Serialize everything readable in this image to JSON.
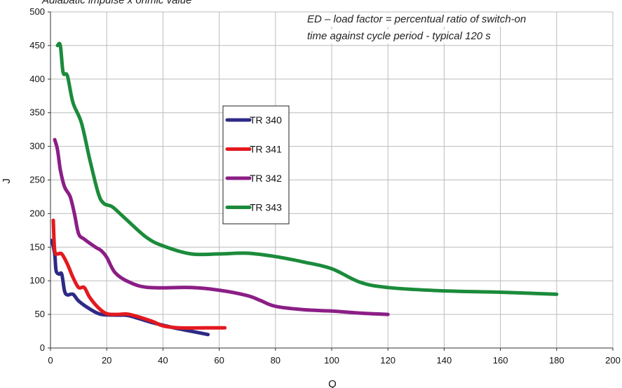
{
  "notes": {
    "top_left": "Adiabatic impulse x ohmic value",
    "top_right_line1": "ED – load factor = percentual ratio of switch-on",
    "top_right_line2": "time against cycle period - typical 120 s"
  },
  "chart_data": {
    "type": "line",
    "title": "",
    "xlabel": "Q",
    "ylabel": "J",
    "xlim": [
      0,
      200
    ],
    "ylim": [
      0,
      500
    ],
    "xticks": [
      "0",
      "20",
      "40",
      "60",
      "80",
      "100",
      "120",
      "140",
      "160",
      "180",
      "200"
    ],
    "yticks": [
      "0",
      "50",
      "100",
      "150",
      "200",
      "250",
      "300",
      "350",
      "400",
      "450",
      "500"
    ],
    "grid": true,
    "legend_position": "center",
    "series": [
      {
        "name": "TR 340",
        "color": "#2e2a86",
        "points": [
          [
            0.5,
            160
          ],
          [
            1.5,
            140
          ],
          [
            2,
            115
          ],
          [
            3,
            110
          ],
          [
            4,
            110
          ],
          [
            5,
            85
          ],
          [
            6,
            79
          ],
          [
            8,
            80
          ],
          [
            10,
            70
          ],
          [
            14,
            58
          ],
          [
            18,
            50
          ],
          [
            24,
            49
          ],
          [
            28,
            48
          ],
          [
            36,
            38
          ],
          [
            44,
            30
          ],
          [
            50,
            25
          ],
          [
            56,
            20
          ]
        ]
      },
      {
        "name": "TR 341",
        "color": "#e3191f",
        "points": [
          [
            1,
            190
          ],
          [
            1.5,
            145
          ],
          [
            2.5,
            140
          ],
          [
            4,
            140
          ],
          [
            6,
            125
          ],
          [
            8,
            105
          ],
          [
            10,
            90
          ],
          [
            12,
            90
          ],
          [
            14,
            75
          ],
          [
            17,
            60
          ],
          [
            20,
            51
          ],
          [
            24,
            50
          ],
          [
            28,
            50
          ],
          [
            36,
            40
          ],
          [
            40,
            33
          ],
          [
            46,
            30
          ],
          [
            55,
            30
          ],
          [
            62,
            30
          ]
        ]
      },
      {
        "name": "TR 342",
        "color": "#8b1e86",
        "points": [
          [
            1.5,
            310
          ],
          [
            2.5,
            295
          ],
          [
            3.5,
            265
          ],
          [
            5,
            240
          ],
          [
            7,
            225
          ],
          [
            8.5,
            200
          ],
          [
            10,
            170
          ],
          [
            12,
            162
          ],
          [
            16,
            150
          ],
          [
            18,
            145
          ],
          [
            20,
            135
          ],
          [
            23,
            112
          ],
          [
            28,
            98
          ],
          [
            35,
            90
          ],
          [
            50,
            90
          ],
          [
            60,
            86
          ],
          [
            70,
            78
          ],
          [
            75,
            70
          ],
          [
            80,
            62
          ],
          [
            90,
            57
          ],
          [
            100,
            55
          ],
          [
            110,
            52
          ],
          [
            120,
            50
          ]
        ]
      },
      {
        "name": "TR 343",
        "color": "#1b8b3b",
        "points": [
          [
            2.5,
            450
          ],
          [
            3.5,
            450
          ],
          [
            4.5,
            410
          ],
          [
            6,
            405
          ],
          [
            8,
            365
          ],
          [
            11,
            335
          ],
          [
            14,
            280
          ],
          [
            17,
            230
          ],
          [
            19,
            215
          ],
          [
            22,
            210
          ],
          [
            26,
            195
          ],
          [
            34,
            165
          ],
          [
            40,
            152
          ],
          [
            50,
            140
          ],
          [
            60,
            140
          ],
          [
            70,
            141
          ],
          [
            80,
            136
          ],
          [
            90,
            128
          ],
          [
            100,
            118
          ],
          [
            110,
            98
          ],
          [
            120,
            90
          ],
          [
            140,
            85
          ],
          [
            160,
            83
          ],
          [
            180,
            80
          ]
        ]
      }
    ]
  }
}
